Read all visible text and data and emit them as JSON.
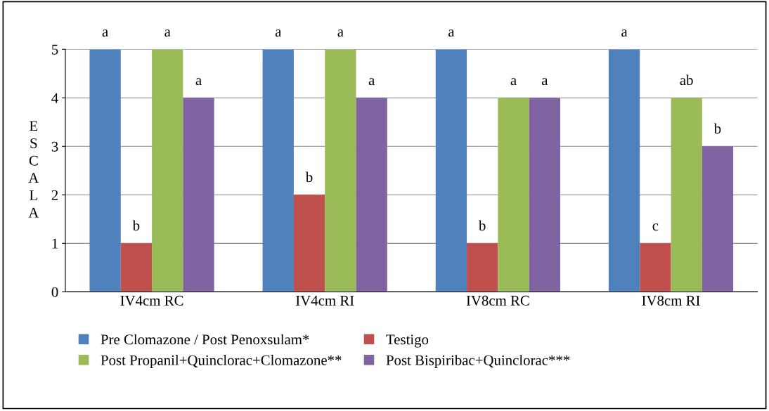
{
  "chart_data": {
    "type": "bar",
    "ylabel": "ESCALA",
    "categories": [
      "IV4cm RC",
      "IV4cm RI",
      "IV8cm RC",
      "IV8cm RI"
    ],
    "series": [
      {
        "name": "Pre Clomazone / Post Penoxsulam*",
        "color": "#4f81bd",
        "values": [
          5,
          5,
          5,
          5
        ],
        "value_labels": [
          "a",
          "a",
          "a",
          "a"
        ]
      },
      {
        "name": "Testigo",
        "color": "#c0504d",
        "values": [
          1,
          2,
          1,
          1
        ],
        "value_labels": [
          "b",
          "b",
          "b",
          "c"
        ]
      },
      {
        "name": "Post Propanil+Quinclorac+Clomazone**",
        "color": "#9bbb59",
        "values": [
          5,
          5,
          4,
          4
        ],
        "value_labels": [
          "a",
          "a",
          "a",
          "ab"
        ]
      },
      {
        "name": "Post Bispiribac+Quinclorac***",
        "color": "#8064a2",
        "values": [
          4,
          4,
          4,
          3
        ],
        "value_labels": [
          "a",
          "a",
          "a",
          "b"
        ]
      }
    ],
    "ylim": [
      0,
      5
    ],
    "yticks": [
      0,
      1,
      2,
      3,
      4,
      5
    ],
    "grid": "y",
    "legend": "bottom"
  }
}
